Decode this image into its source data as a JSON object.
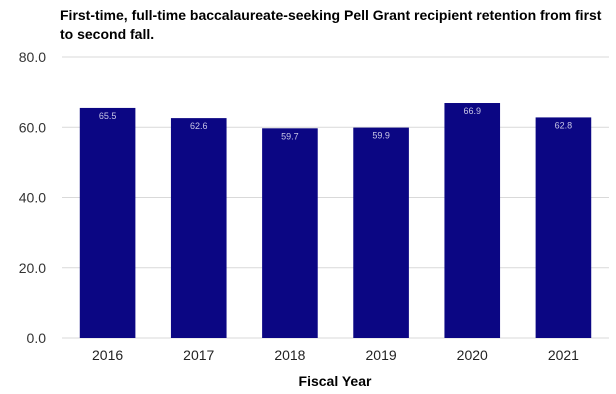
{
  "chart_data": {
    "type": "bar",
    "title": "First-time, full-time baccalaureate-seeking Pell Grant recipient retention from first to second fall.",
    "xlabel": "Fiscal Year",
    "ylabel": "",
    "categories": [
      "2016",
      "2017",
      "2018",
      "2019",
      "2020",
      "2021"
    ],
    "series": [
      {
        "values": [
          65.5,
          62.6,
          59.7,
          59.9,
          66.9,
          62.8
        ]
      }
    ],
    "data_labels": [
      "65.5",
      "62.6",
      "59.7",
      "59.9",
      "66.9",
      "62.8"
    ],
    "ylim": [
      0,
      80
    ],
    "yticks": [
      0,
      20,
      40,
      60,
      80
    ],
    "ytick_labels": [
      "0.0",
      "20.0",
      "40.0",
      "60.0",
      "80.0"
    ],
    "grid": true,
    "legend": "none",
    "bar_color": "#0b0683",
    "grid_color": "#d9d9d9",
    "label_color": "#c9c7e6"
  }
}
